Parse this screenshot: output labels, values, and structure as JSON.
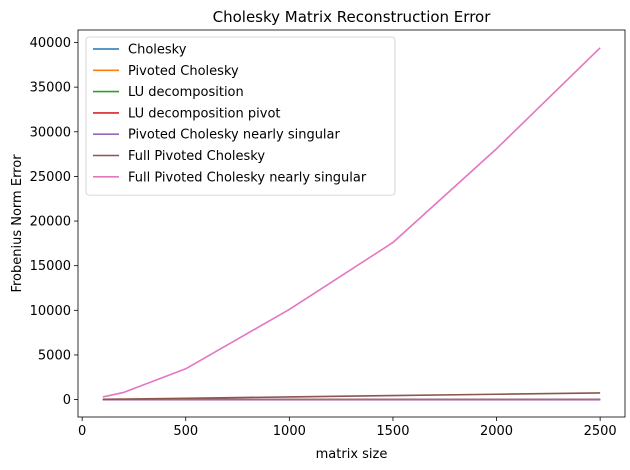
{
  "chart_data": {
    "type": "line",
    "title": "Cholesky Matrix Reconstruction Error",
    "xlabel": "matrix size",
    "ylabel": "Frobenius Norm Error",
    "xlim": [
      -20,
      2620
    ],
    "ylim": [
      -1950,
      41400
    ],
    "xticks": [
      0,
      500,
      1000,
      1500,
      2000,
      2500
    ],
    "yticks": [
      0,
      5000,
      10000,
      15000,
      20000,
      25000,
      30000,
      35000,
      40000
    ],
    "grid": false,
    "legend_position": "top-left",
    "x": [
      100,
      200,
      500,
      1000,
      1500,
      2000,
      2500
    ],
    "series": [
      {
        "name": "Cholesky",
        "color": "#1f77b4",
        "values": [
          0,
          0,
          0,
          0,
          0,
          0,
          0
        ]
      },
      {
        "name": "Pivoted Cholesky",
        "color": "#ff7f0e",
        "values": [
          0,
          0,
          0,
          0,
          0,
          0,
          0
        ]
      },
      {
        "name": "LU decomposition",
        "color": "#2ca02c",
        "values": [
          0,
          0,
          0,
          0,
          0,
          0,
          0
        ]
      },
      {
        "name": "LU decomposition pivot",
        "color": "#d62728",
        "values": [
          0,
          0,
          0,
          0,
          0,
          0,
          0
        ]
      },
      {
        "name": "Pivoted Cholesky nearly singular",
        "color": "#9467bd",
        "values": [
          0,
          0,
          0,
          0,
          0,
          0,
          0
        ]
      },
      {
        "name": "Full Pivoted Cholesky",
        "color": "#8c564b",
        "values": [
          30,
          60,
          150,
          300,
          450,
          600,
          750
        ]
      },
      {
        "name": "Full Pivoted Cholesky nearly singular",
        "color": "#e377c2",
        "values": [
          300,
          800,
          3450,
          10100,
          17600,
          28100,
          39400
        ]
      }
    ]
  }
}
